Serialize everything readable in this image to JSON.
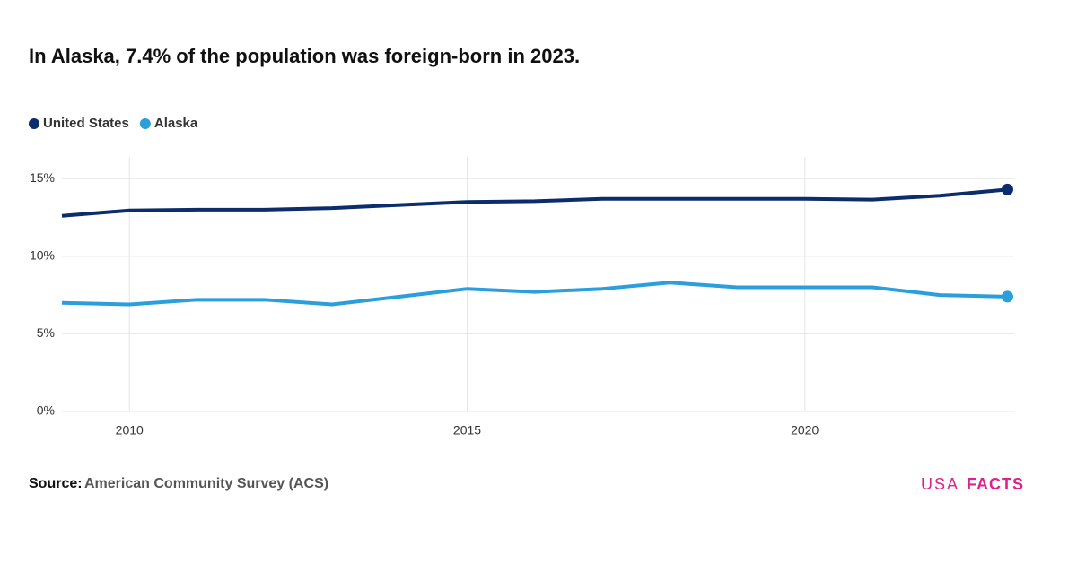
{
  "chart_data": {
    "type": "line",
    "title": "In Alaska, 7.4% of the population was foreign-born in 2023.",
    "x": [
      2009,
      2010,
      2011,
      2012,
      2013,
      2014,
      2015,
      2016,
      2017,
      2018,
      2019,
      2020,
      2021,
      2022,
      2023
    ],
    "series": [
      {
        "name": "United States",
        "color": "#0b2d6b",
        "values": [
          12.6,
          12.95,
          13.0,
          13.0,
          13.1,
          13.3,
          13.5,
          13.55,
          13.7,
          13.7,
          13.7,
          13.7,
          13.65,
          13.9,
          14.3
        ]
      },
      {
        "name": "Alaska",
        "color": "#2b9fdc",
        "values": [
          7.0,
          6.9,
          7.2,
          7.2,
          6.9,
          7.4,
          7.9,
          7.7,
          7.9,
          8.3,
          8.0,
          8.0,
          8.0,
          7.5,
          7.4
        ]
      }
    ],
    "xlim": [
      2009,
      2023.1
    ],
    "xticks": [
      2010,
      2015,
      2020
    ],
    "ylim": [
      0,
      16.4
    ],
    "yticks": [
      {
        "value": 0,
        "label": "0%"
      },
      {
        "value": 5,
        "label": "5%"
      },
      {
        "value": 10,
        "label": "10%"
      },
      {
        "value": 15,
        "label": "15%"
      }
    ],
    "grid": true,
    "legend": "top-left",
    "source_label": "Source:",
    "source": "American Community Survey (ACS)",
    "logo": {
      "left": "USA",
      "right": "FACTS"
    }
  }
}
